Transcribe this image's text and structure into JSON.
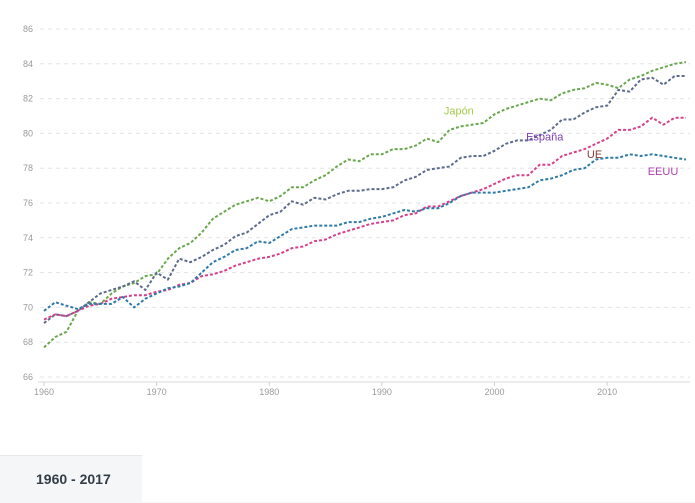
{
  "chart_data": {
    "type": "line",
    "title": "",
    "xlabel": "",
    "ylabel": "",
    "xlim": [
      1960,
      2017
    ],
    "ylim": [
      66,
      86
    ],
    "x_ticks": [
      1960,
      1970,
      1980,
      1990,
      2000,
      2010
    ],
    "y_ticks": [
      66,
      68,
      70,
      72,
      74,
      76,
      78,
      80,
      82,
      84,
      86
    ],
    "grid": true,
    "x": [
      1960,
      1961,
      1962,
      1963,
      1964,
      1965,
      1966,
      1967,
      1968,
      1969,
      1970,
      1971,
      1972,
      1973,
      1974,
      1975,
      1976,
      1977,
      1978,
      1979,
      1980,
      1981,
      1982,
      1983,
      1984,
      1985,
      1986,
      1987,
      1988,
      1989,
      1990,
      1991,
      1992,
      1993,
      1994,
      1995,
      1996,
      1997,
      1998,
      1999,
      2000,
      2001,
      2002,
      2003,
      2004,
      2005,
      2006,
      2007,
      2008,
      2009,
      2010,
      2011,
      2012,
      2013,
      2014,
      2015,
      2016,
      2017
    ],
    "series": [
      {
        "name": "Japón",
        "color": "#6aa84f",
        "label_color": "#a4cc4a",
        "label_year": 1995.5,
        "label_value": 81.1,
        "values": [
          67.7,
          68.3,
          68.6,
          69.8,
          70.3,
          70.2,
          70.8,
          71.2,
          71.4,
          71.8,
          71.9,
          72.8,
          73.4,
          73.7,
          74.3,
          75.1,
          75.5,
          75.9,
          76.1,
          76.3,
          76.1,
          76.4,
          76.9,
          76.9,
          77.3,
          77.6,
          78.1,
          78.5,
          78.4,
          78.8,
          78.8,
          79.1,
          79.1,
          79.3,
          79.7,
          79.5,
          80.2,
          80.4,
          80.5,
          80.6,
          81.1,
          81.4,
          81.6,
          81.8,
          82.0,
          81.9,
          82.3,
          82.5,
          82.6,
          82.9,
          82.8,
          82.6,
          83.1,
          83.3,
          83.6,
          83.8,
          84.0,
          84.1
        ]
      },
      {
        "name": "España",
        "color": "#5d6b8c",
        "label_color": "#7a3fb0",
        "label_year": 2002.8,
        "label_value": 79.6,
        "values": [
          69.1,
          69.6,
          69.5,
          69.8,
          70.3,
          70.8,
          71.0,
          71.2,
          71.5,
          71.0,
          72.0,
          71.6,
          72.8,
          72.6,
          72.9,
          73.3,
          73.6,
          74.1,
          74.3,
          74.8,
          75.3,
          75.5,
          76.1,
          75.9,
          76.3,
          76.2,
          76.5,
          76.7,
          76.7,
          76.8,
          76.8,
          76.9,
          77.3,
          77.5,
          77.9,
          78.0,
          78.1,
          78.6,
          78.7,
          78.7,
          79.0,
          79.4,
          79.6,
          79.6,
          79.9,
          80.2,
          80.8,
          80.8,
          81.2,
          81.5,
          81.6,
          82.5,
          82.4,
          83.1,
          83.2,
          82.8,
          83.3,
          83.3
        ]
      },
      {
        "name": "UE",
        "color": "#d6408a",
        "label_color": "#8c3a36",
        "label_year": 2008.2,
        "label_value": 78.6,
        "values": [
          69.3,
          69.6,
          69.5,
          69.8,
          70.1,
          70.2,
          70.5,
          70.6,
          70.7,
          70.7,
          70.9,
          71.0,
          71.3,
          71.4,
          71.8,
          71.9,
          72.1,
          72.4,
          72.6,
          72.8,
          72.9,
          73.1,
          73.4,
          73.5,
          73.8,
          73.9,
          74.2,
          74.4,
          74.6,
          74.8,
          74.9,
          75.0,
          75.3,
          75.4,
          75.8,
          75.8,
          76.1,
          76.4,
          76.6,
          76.8,
          77.1,
          77.4,
          77.6,
          77.6,
          78.2,
          78.2,
          78.7,
          78.9,
          79.1,
          79.4,
          79.7,
          80.2,
          80.2,
          80.4,
          80.9,
          80.5,
          80.9,
          80.9
        ]
      },
      {
        "name": "EEUU",
        "color": "#2f7aa8",
        "label_color": "#b03fb0",
        "label_year": 2013.6,
        "label_value": 77.6,
        "values": [
          69.8,
          70.3,
          70.1,
          69.9,
          70.2,
          70.2,
          70.2,
          70.6,
          70.0,
          70.5,
          70.8,
          71.1,
          71.2,
          71.4,
          72.0,
          72.6,
          72.9,
          73.3,
          73.4,
          73.8,
          73.7,
          74.1,
          74.5,
          74.6,
          74.7,
          74.7,
          74.7,
          74.9,
          74.9,
          75.1,
          75.2,
          75.4,
          75.6,
          75.5,
          75.7,
          75.7,
          76.0,
          76.4,
          76.6,
          76.6,
          76.6,
          76.7,
          76.8,
          76.9,
          77.3,
          77.4,
          77.6,
          77.9,
          78.0,
          78.5,
          78.6,
          78.6,
          78.8,
          78.7,
          78.8,
          78.7,
          78.6,
          78.5
        ]
      }
    ]
  },
  "footer": {
    "range_label": "1960 - 2017"
  }
}
